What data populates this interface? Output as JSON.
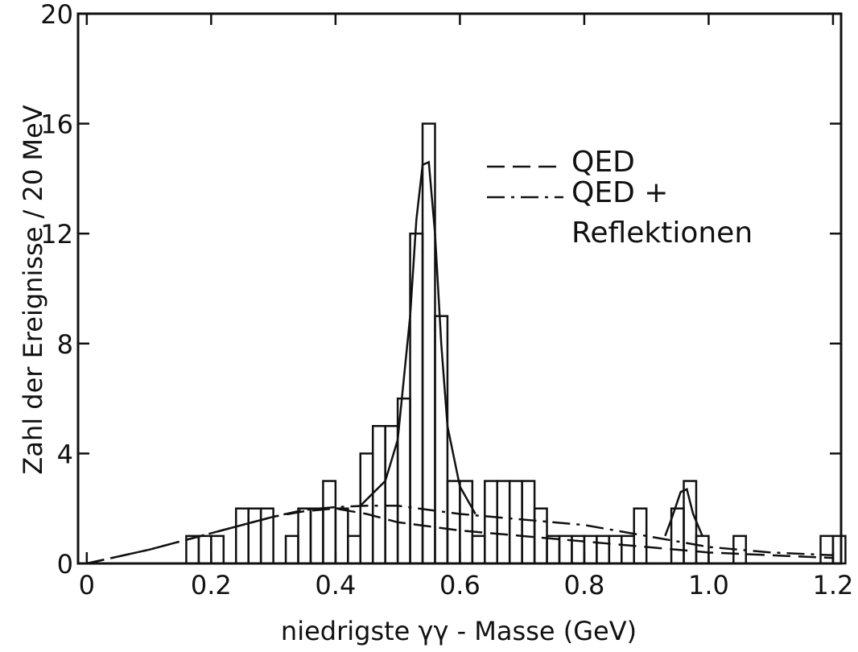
{
  "chart_data": {
    "type": "histogram",
    "xlabel": "niedrigste γγ - Masse  (GeV)",
    "ylabel": "Zahl der Ereignisse / 20 MeV",
    "bins": [
      0.16,
      0.18,
      0.2,
      0.22,
      0.24,
      0.26,
      0.28,
      0.3,
      0.32,
      0.34,
      0.36,
      0.38,
      0.4,
      0.42,
      0.44,
      0.46,
      0.48,
      0.5,
      0.52,
      0.54,
      0.56,
      0.58,
      0.6,
      0.62,
      0.64,
      0.66,
      0.68,
      0.7,
      0.72,
      0.74,
      0.76,
      0.78,
      0.8,
      0.82,
      0.84,
      0.86,
      0.88,
      0.9,
      0.92,
      0.94,
      0.96,
      0.98,
      1.0,
      1.02,
      1.04,
      1.06,
      1.08,
      1.1,
      1.12,
      1.14,
      1.16,
      1.18,
      1.2,
      1.22
    ],
    "values": [
      1,
      1,
      1,
      0,
      2,
      2,
      2,
      0,
      1,
      2,
      2,
      3,
      2,
      1,
      4,
      5,
      5,
      6,
      12,
      16,
      9,
      3,
      3,
      1,
      3,
      3,
      3,
      3,
      2,
      1,
      1,
      1,
      1,
      1,
      1,
      1,
      2,
      0,
      0,
      2,
      3,
      1,
      0,
      0,
      1,
      0,
      0,
      0,
      0,
      0,
      0,
      1,
      1
    ],
    "color": "#111111",
    "series": [
      {
        "name": "QED",
        "style": "dashed",
        "x": [
          0,
          0.1,
          0.2,
          0.3,
          0.35,
          0.4,
          0.45,
          0.5,
          0.6,
          0.7,
          0.8,
          0.9,
          1.0,
          1.1,
          1.2
        ],
        "values": [
          0,
          0.5,
          1.1,
          1.7,
          1.9,
          2.0,
          1.8,
          1.5,
          1.2,
          1.0,
          0.8,
          0.6,
          0.4,
          0.3,
          0.2
        ]
      },
      {
        "name": "QED +\nReflektionen",
        "style": "dashdot",
        "x": [
          0,
          0.1,
          0.2,
          0.3,
          0.35,
          0.4,
          0.45,
          0.5,
          0.6,
          0.7,
          0.8,
          0.9,
          1.0,
          1.1,
          1.2
        ],
        "values": [
          0,
          0.5,
          1.1,
          1.7,
          1.95,
          2.05,
          2.1,
          2.1,
          1.8,
          1.6,
          1.4,
          1.0,
          0.6,
          0.4,
          0.3
        ]
      },
      {
        "style": "solid",
        "x": [
          0.44,
          0.48,
          0.5,
          0.52,
          0.53,
          0.54,
          0.55,
          0.56,
          0.57,
          0.58,
          0.6,
          0.625,
          null,
          0.93,
          0.94,
          0.955,
          0.965,
          0.975,
          0.99
        ],
        "values": [
          2.1,
          3,
          4.5,
          9,
          12.5,
          14.5,
          14.6,
          12,
          8,
          5,
          2.8,
          1.8,
          null,
          1.0,
          1.6,
          2.6,
          2.7,
          1.8,
          1.0
        ]
      }
    ],
    "xlim": [
      -0.014,
      1.213
    ],
    "ylim": [
      0,
      20
    ],
    "xticks": [
      0,
      0.2,
      0.4,
      0.6,
      0.8,
      {
        "value": 1,
        "label": "1.0"
      },
      1.2
    ],
    "yticks": [
      0,
      4,
      8,
      12,
      16,
      20
    ]
  }
}
